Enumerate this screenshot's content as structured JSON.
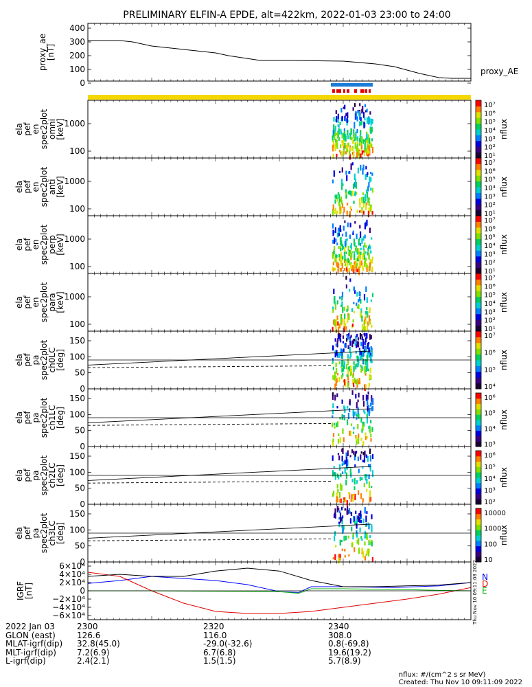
{
  "title": "PRELIMINARY ELFIN-A EPDE, alt=422km, 2022-01-03 23:00 to 24:00",
  "chart_data": [
    {
      "type": "line",
      "panel": "proxy_ae",
      "ylabel": [
        "proxy_ae",
        "[nT]"
      ],
      "series_label": "proxy_AE",
      "ylim": [
        0,
        420
      ],
      "yticks": [
        "400",
        "300",
        "200",
        "100",
        "0"
      ],
      "ytick_values": [
        400,
        300,
        200,
        100,
        0
      ],
      "x": [
        0,
        5,
        7,
        10,
        15,
        20,
        22,
        27,
        32,
        40,
        45,
        48,
        50,
        52,
        55,
        57,
        60
      ],
      "y": [
        310,
        310,
        300,
        270,
        245,
        220,
        200,
        165,
        165,
        160,
        140,
        120,
        95,
        70,
        40,
        35,
        35
      ]
    },
    {
      "type": "heatmap",
      "panel": "spec2plot omni",
      "ylabel": [
        "ela",
        "pef",
        "en",
        "spec2plot",
        "omni",
        "[keV]"
      ],
      "yticks": [
        "1000",
        "100"
      ],
      "scale": "log",
      "colorbar_label": "nflux",
      "colorbar_ticks": [
        "10⁷",
        "10⁶",
        "10⁵",
        "10⁴",
        "10³",
        "10²",
        "10¹"
      ]
    },
    {
      "type": "heatmap",
      "panel": "spec2plot anti",
      "ylabel": [
        "ela",
        "pef",
        "en",
        "spec2plot",
        "anti",
        "[keV]"
      ],
      "yticks": [
        "1000",
        "100"
      ],
      "scale": "log",
      "colorbar_label": "nflux",
      "colorbar_ticks": [
        "10⁷",
        "10⁶",
        "10⁵",
        "10⁴",
        "10³",
        "10²",
        "10¹"
      ]
    },
    {
      "type": "heatmap",
      "panel": "spec2plot perp",
      "ylabel": [
        "ela",
        "pef",
        "en",
        "spec2plot",
        "perp",
        "[keV]"
      ],
      "yticks": [
        "1000",
        "100"
      ],
      "scale": "log",
      "colorbar_label": "nflux",
      "colorbar_ticks": [
        "10⁷",
        "10⁶",
        "10⁵",
        "10⁴",
        "10³",
        "10²",
        "10¹"
      ]
    },
    {
      "type": "heatmap",
      "panel": "spec2plot para",
      "ylabel": [
        "ela",
        "pef",
        "en",
        "spec2plot",
        "para",
        "[keV]"
      ],
      "yticks": [
        "1000",
        "100"
      ],
      "scale": "log",
      "colorbar_label": "nflux",
      "colorbar_ticks": [
        "10⁷",
        "10⁶",
        "10⁵",
        "10⁴",
        "10³",
        "10²",
        "10¹"
      ]
    },
    {
      "type": "heatmap",
      "panel": "spec2plot ch0LC",
      "ylabel": [
        "ela",
        "pef",
        "pa",
        "spec2plot",
        "ch0LC",
        "[deg]"
      ],
      "yticks": [
        "150",
        "100",
        "50",
        "0"
      ],
      "ylim": [
        0,
        180
      ],
      "colorbar_label": "nflux",
      "colorbar_ticks": [
        "10⁷",
        "10⁶",
        "10⁵",
        "10⁴"
      ]
    },
    {
      "type": "heatmap",
      "panel": "spec2plot ch1LC",
      "ylabel": [
        "ela",
        "pef",
        "pa",
        "spec2plot",
        "ch1LC",
        "[deg]"
      ],
      "yticks": [
        "150",
        "100",
        "50",
        "0"
      ],
      "ylim": [
        0,
        180
      ],
      "colorbar_label": "nflux",
      "colorbar_ticks": [
        "10⁶",
        "10⁵",
        "10⁴",
        "10³"
      ]
    },
    {
      "type": "heatmap",
      "panel": "spec2plot ch2LC",
      "ylabel": [
        "ela",
        "pef",
        "pa",
        "spec2plot",
        "ch2LC",
        "[deg]"
      ],
      "yticks": [
        "150",
        "100",
        "50",
        "0"
      ],
      "ylim": [
        0,
        180
      ],
      "colorbar_label": "nflux",
      "colorbar_ticks": [
        "10⁶",
        "10⁵",
        "10⁴",
        "10³",
        "10²"
      ]
    },
    {
      "type": "heatmap",
      "panel": "spec2plot ch3LC",
      "ylabel": [
        "ela",
        "pef",
        "pa",
        "spec2plot",
        "ch3LC",
        "[deg]"
      ],
      "yticks": [
        "150",
        "100",
        "50",
        "0"
      ],
      "ylim": [
        0,
        180
      ],
      "colorbar_label": "nflux",
      "colorbar_ticks": [
        "10000",
        "1000",
        "100",
        "10"
      ]
    },
    {
      "type": "line",
      "panel": "IGRF",
      "ylabel": [
        "IGRF",
        "[nT]"
      ],
      "yticks": [
        "6×10⁴",
        "4×10⁴",
        "2×10⁴",
        "0",
        "−2×10⁴",
        "−4×10⁴",
        "−6×10⁴"
      ],
      "ytick_values": [
        60000,
        40000,
        20000,
        0,
        -20000,
        -40000,
        -60000
      ],
      "ylim": [
        -70000,
        70000
      ],
      "legend": [
        "N",
        "D",
        "E"
      ],
      "side_text": "Thu Nov 10 09:11:08 2022",
      "series": [
        {
          "name": "N",
          "color": "#0000ff",
          "x": [
            0,
            5,
            10,
            20,
            25,
            30,
            33,
            35,
            40,
            48,
            55,
            60
          ],
          "y": [
            18000,
            25000,
            35000,
            25000,
            15000,
            -2000,
            -4000,
            10000,
            10000,
            8000,
            12000,
            20000
          ]
        },
        {
          "name": "D",
          "color": "#e00000",
          "x": [
            0,
            5,
            10,
            15,
            20,
            25,
            30,
            35,
            40,
            45,
            50,
            55,
            60
          ],
          "y": [
            45000,
            35000,
            0,
            -30000,
            -50000,
            -55000,
            -55000,
            -50000,
            -40000,
            -30000,
            -20000,
            -8000,
            8000
          ]
        },
        {
          "name": "E",
          "color": "#00b000",
          "x": [
            0,
            10,
            20,
            30,
            33,
            35,
            40,
            50,
            55,
            60
          ],
          "y": [
            0,
            0,
            -1000,
            -2000,
            -6000,
            5000,
            5000,
            3000,
            1000,
            0
          ]
        },
        {
          "name": "",
          "color": "#000000",
          "x": [
            0,
            5,
            10,
            15,
            20,
            25,
            30,
            35,
            40,
            45,
            50,
            55,
            60
          ],
          "y": [
            35000,
            40000,
            35000,
            35000,
            48000,
            55000,
            48000,
            25000,
            10000,
            10000,
            12000,
            14000,
            20000
          ]
        }
      ]
    }
  ],
  "footer": {
    "rows": [
      {
        "label": "2022 Jan 03",
        "v1": "2300",
        "v2": "2320",
        "v3": "2340"
      },
      {
        "label": "GLON (east)",
        "v1": "126.6",
        "v2": "116.0",
        "v3": "308.0"
      },
      {
        "label": "MLAT-igrf(dip)",
        "v1": "32.8(45.0)",
        "v2": "-29.0(-32.6)",
        "v3": "0.8(-69.8)"
      },
      {
        "label": "MLT-igrf(dip)",
        "v1": "7.2(6.9)",
        "v2": "6.7(6.8)",
        "v3": "19.6(19.2)"
      },
      {
        "label": "L-igrf(dip)",
        "v1": "2.4(2.1)",
        "v2": "1.5(1.5)",
        "v3": "5.7(8.9)"
      }
    ],
    "nflux_units": "nflux: #/(cm^2 s sr MeV)",
    "created": "Created: Thu Nov 10 09:11:09 2022"
  }
}
